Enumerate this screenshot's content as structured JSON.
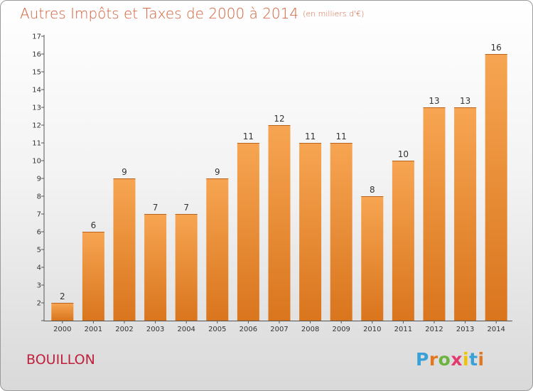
{
  "chart_data": {
    "type": "bar",
    "title": "Autres Impôts et Taxes de 2000 à 2014",
    "unit_label": "(en milliers d'€)",
    "categories": [
      "2000",
      "2001",
      "2002",
      "2003",
      "2004",
      "2005",
      "2006",
      "2007",
      "2008",
      "2009",
      "2010",
      "2011",
      "2012",
      "2013",
      "2014"
    ],
    "values": [
      2,
      6,
      9,
      7,
      7,
      9,
      11,
      12,
      11,
      11,
      8,
      10,
      13,
      13,
      16
    ],
    "ylim": [
      1,
      17
    ],
    "yticks": [
      1,
      2,
      3,
      4,
      5,
      6,
      7,
      8,
      9,
      10,
      11,
      12,
      13,
      14,
      15,
      16,
      17
    ],
    "bar_color": "#f0953c",
    "grid": false,
    "legend": "none"
  },
  "place_name": "BOUILLON",
  "logo": {
    "text": "Proxiti",
    "letter_colors": [
      "#3aa0d8",
      "#e2771f",
      "#6cb33f",
      "#e23a6e",
      "#f2c200",
      "#3aa0d8",
      "#e2771f"
    ]
  }
}
